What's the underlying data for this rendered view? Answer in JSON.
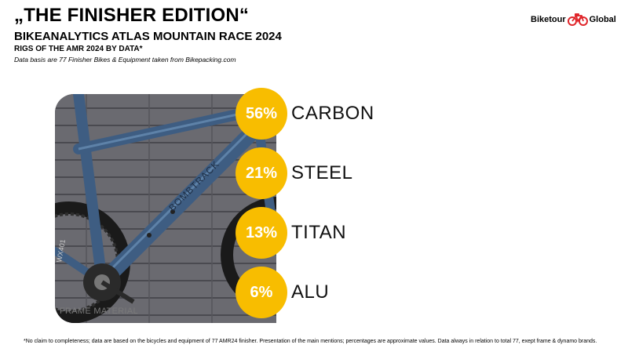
{
  "header": {
    "title": "„THE FINISHER EDITION“",
    "subtitle": "BIKEANALYTICS ATLAS MOUNTAIN RACE 2024",
    "subsubtitle": "RIGS OF THE AMR 2024 BY DATA*",
    "note": "Data basis are 77 Finisher Bikes & Equipment taken from Bikepacking.com"
  },
  "logo": {
    "left_text": "Biketour",
    "right_text": "Global",
    "accent_color": "#e0262b"
  },
  "photo": {
    "caption": "FRAME MATERIAL",
    "frame_text": "BOMBTRACK",
    "tire_text": "WX401"
  },
  "accent_color": "#f8bd00",
  "chart_data": {
    "type": "table",
    "title": "FRAME MATERIAL",
    "unit": "%",
    "categories": [
      "CARBON",
      "STEEL",
      "TITAN",
      "ALU"
    ],
    "values": [
      56,
      21,
      13,
      6
    ],
    "labels": [
      "56%",
      "21%",
      "13%",
      "6%"
    ]
  },
  "footnote": "*No claim to completeness; data are based on the bicycles and equipment of 77 AMR24 finisher. Presentation of the main mentions; percentages are approximate values. Data always in relation to total 77, exept frame & dynamo brands."
}
